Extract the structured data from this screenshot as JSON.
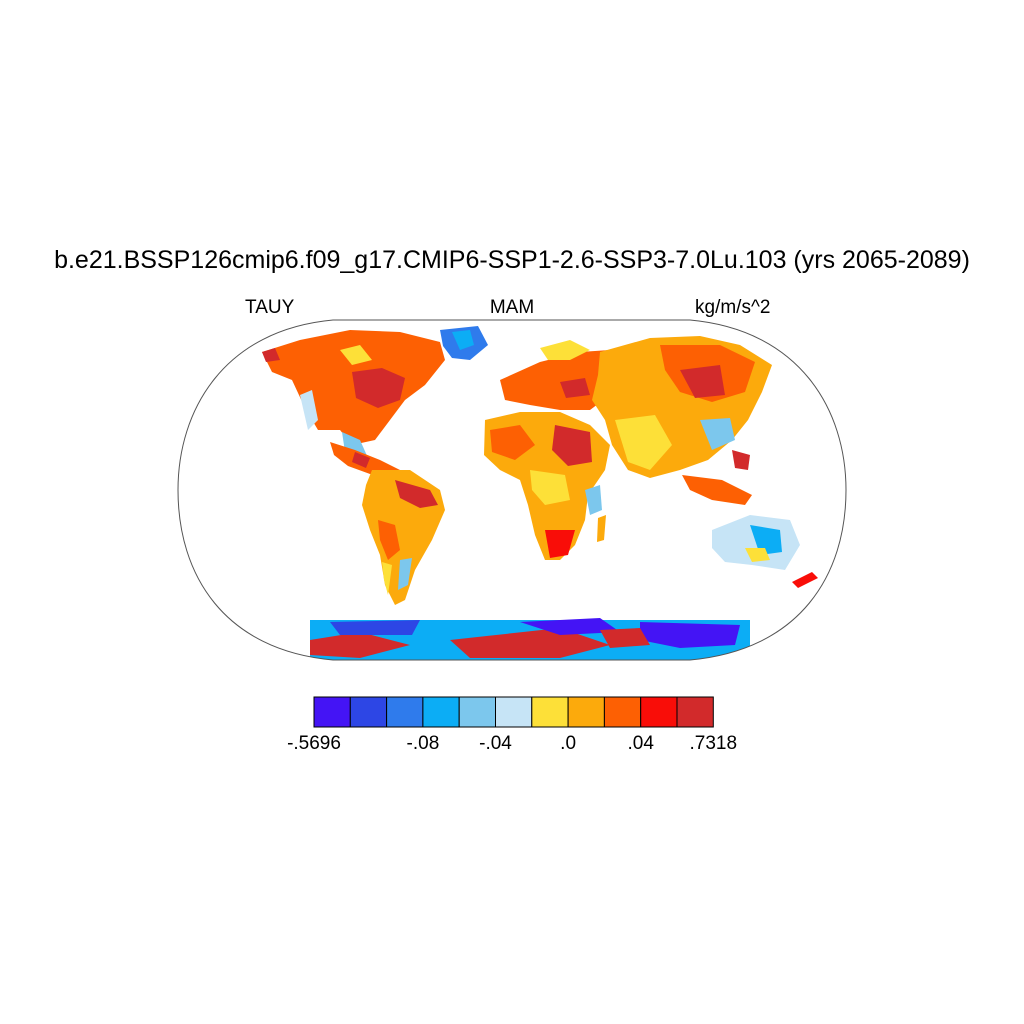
{
  "title": "b.e21.BSSP126cmip6.f09_g17.CMIP6-SSP1-2.6-SSP3-7.0Lu.103 (yrs 2065-2089)",
  "variable": "TAUY",
  "season": "MAM",
  "units": "kg/m/s^2",
  "colorbar": {
    "colors": [
      "#4414f5",
      "#2d46e5",
      "#2f7bec",
      "#0cadf5",
      "#7cc7ed",
      "#c6e4f6",
      "#fde038",
      "#fcaa0c",
      "#fd6003",
      "#f90d08",
      "#d22a2b"
    ],
    "tick_labels": [
      {
        "text": "-.5696",
        "boundary": 0
      },
      {
        "text": "-.08",
        "boundary": 3
      },
      {
        "text": "-.04",
        "boundary": 5
      },
      {
        "text": ".0",
        "boundary": 7
      },
      {
        "text": ".04",
        "boundary": 9
      },
      {
        "text": ".7318",
        "boundary": 11
      }
    ]
  }
}
